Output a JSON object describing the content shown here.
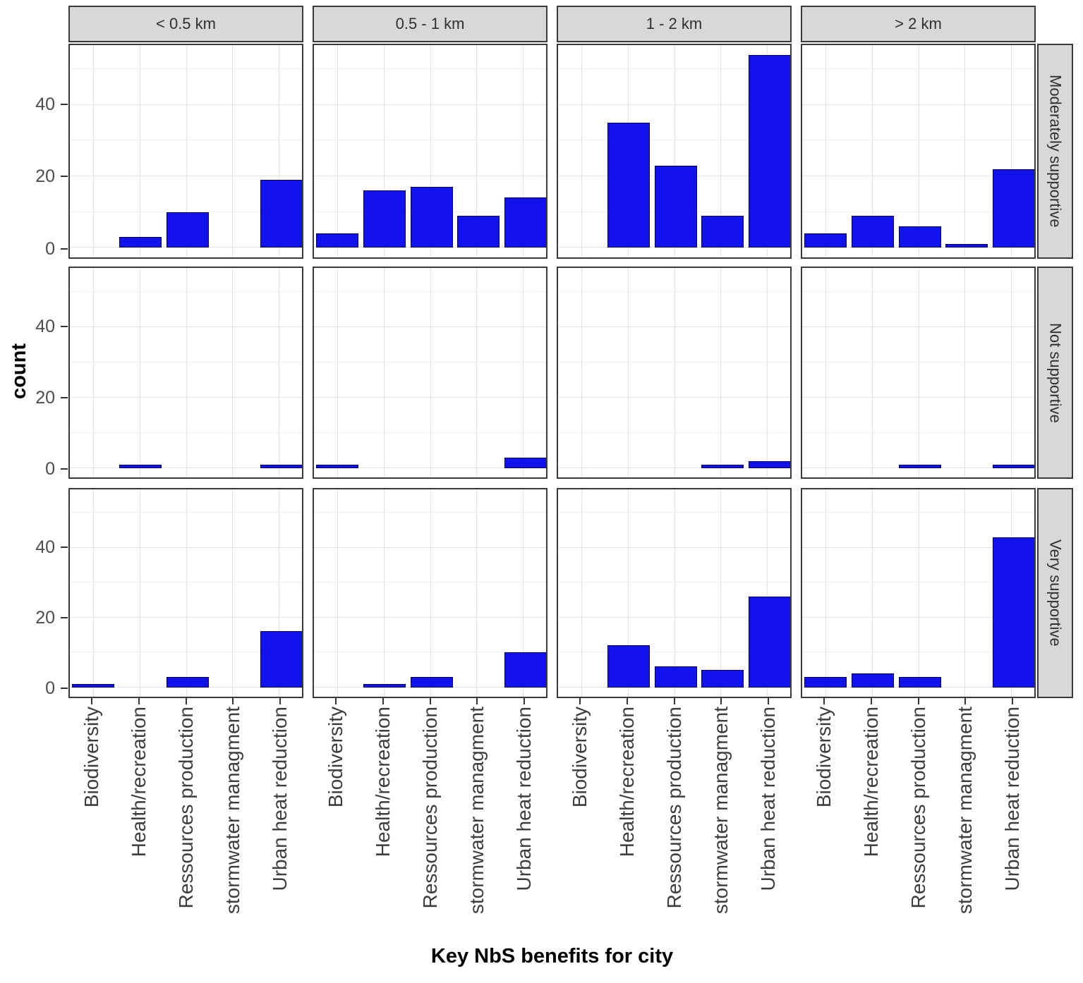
{
  "chart_data": {
    "type": "bar",
    "title": "",
    "xlabel": "Key NbS benefits for city",
    "ylabel": "count",
    "categories": [
      "Biodiversity",
      "Health/recreation",
      "Ressources production",
      "stormwater managment",
      "Urban heat reduction"
    ],
    "col_facets": [
      "< 0.5 km",
      "0.5 - 1 km",
      "1 - 2 km",
      "> 2 km"
    ],
    "row_facets": [
      "Moderately supportive",
      "Not supportive",
      "Very supportive"
    ],
    "y_ticks": [
      "0",
      "20",
      "40"
    ],
    "y_tick_values": [
      0,
      20,
      40
    ],
    "y_minor_gridlines": [
      10,
      30,
      50
    ],
    "ylim": [
      0,
      56.7
    ],
    "grid": true,
    "legend": "none",
    "series": [
      {
        "row_facet": "Moderately supportive",
        "values_by_col_facet": [
          [
            0,
            3,
            10,
            0,
            19
          ],
          [
            4,
            16,
            17,
            9,
            14
          ],
          [
            0,
            35,
            23,
            9,
            54
          ],
          [
            4,
            9,
            6,
            1,
            22
          ]
        ]
      },
      {
        "row_facet": "Not supportive",
        "values_by_col_facet": [
          [
            0,
            1,
            0,
            0,
            1
          ],
          [
            1,
            0,
            0,
            0,
            3
          ],
          [
            0,
            0,
            0,
            1,
            2
          ],
          [
            0,
            0,
            1,
            0,
            1
          ]
        ]
      },
      {
        "row_facet": "Very supportive",
        "values_by_col_facet": [
          [
            1,
            0,
            3,
            0,
            16
          ],
          [
            0,
            1,
            3,
            0,
            10
          ],
          [
            0,
            12,
            6,
            5,
            26
          ],
          [
            3,
            4,
            3,
            0,
            43
          ]
        ]
      }
    ],
    "colors": {
      "bar_fill": "#1212EE",
      "bar_stroke": "#000050",
      "strip_bg": "#D8D8D8",
      "border": "#3A3A3A",
      "grid_major": "#E2E2E2",
      "grid_minor": "#EDEDED",
      "tick_text": "#4D4D4D",
      "axis_text": "#3D3D3D",
      "axis_title": "#000000",
      "background": "#FFFFFF"
    }
  }
}
